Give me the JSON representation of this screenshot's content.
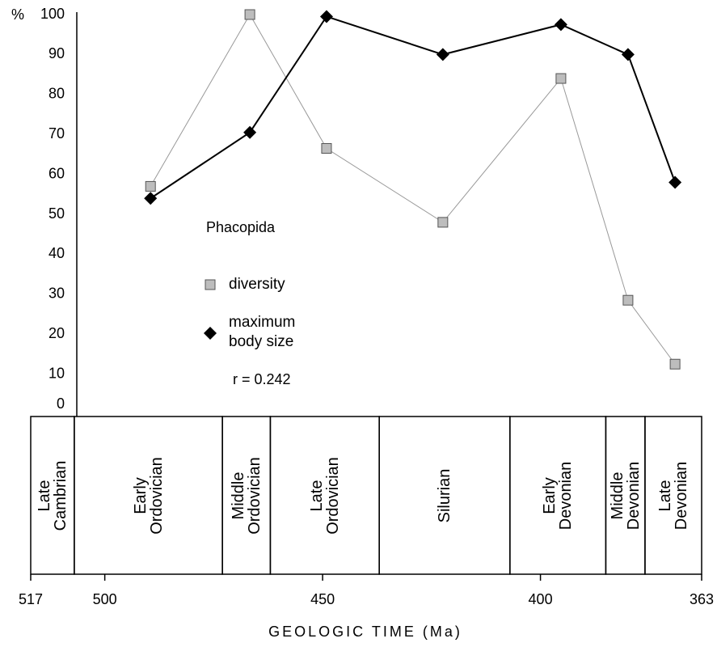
{
  "chart_data": {
    "type": "line",
    "annotation_title": "Phacopida",
    "annotation_r": "r = 0.242",
    "y_unit": "%",
    "xlabel": "GEOLOGIC TIME (Ma)",
    "xlim": [
      517,
      363
    ],
    "xticks": [
      517,
      500,
      450,
      400,
      363
    ],
    "ylim": [
      0,
      100
    ],
    "yticks": [
      0,
      10,
      20,
      30,
      40,
      50,
      60,
      70,
      80,
      90,
      100
    ],
    "periods": [
      "Late Cambrian",
      "Early Ordovician",
      "Middle Ordovician",
      "Late Ordovician",
      "Silurian",
      "Early Devonian",
      "Middle Devonian",
      "Late Devonian"
    ],
    "period_boundaries": [
      517,
      507,
      473,
      462,
      437,
      407,
      385,
      376,
      363
    ],
    "x": [
      489.5,
      466.7,
      449.1,
      422.4,
      395.3,
      379.9,
      369.1
    ],
    "series": [
      {
        "name": "diversity",
        "color": "#999999",
        "marker": "square",
        "values": [
          57,
          100,
          66.5,
          48,
          84,
          28.5,
          12.5
        ]
      },
      {
        "name": "maximum body size",
        "color": "#000000",
        "marker": "diamond",
        "values": [
          54,
          70.5,
          99.5,
          90,
          97.5,
          90,
          58
        ]
      }
    ]
  }
}
